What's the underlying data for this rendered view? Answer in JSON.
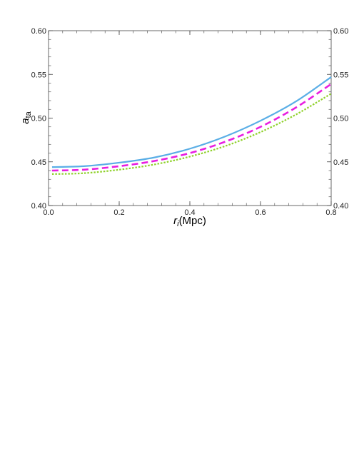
{
  "chart_data": {
    "type": "line",
    "xlabel_main": "r",
    "xlabel_sub": "i",
    "xlabel_rest": "(Mpc)",
    "ylabel_main": "a",
    "ylabel_sub": "ta",
    "xlim": [
      0,
      0.8
    ],
    "ylim": [
      0.4,
      0.6
    ],
    "x_ticks": [
      0.0,
      0.2,
      0.4,
      0.6,
      0.8
    ],
    "x_tick_labels": [
      "0.0",
      "0.2",
      "0.4",
      "0.6",
      "0.8"
    ],
    "y_ticks": [
      0.4,
      0.45,
      0.5,
      0.55,
      0.6
    ],
    "y_tick_labels": [
      "0.40",
      "0.45",
      "0.50",
      "0.55",
      "0.60"
    ],
    "grid": false,
    "x": [
      0.01,
      0.1,
      0.2,
      0.3,
      0.4,
      0.5,
      0.6,
      0.7,
      0.8
    ],
    "series": [
      {
        "values": [
          0.444,
          0.445,
          0.449,
          0.455,
          0.465,
          0.479,
          0.497,
          0.519,
          0.547
        ],
        "color": "#5aaee6",
        "style": "solid"
      },
      {
        "values": [
          0.44,
          0.441,
          0.445,
          0.451,
          0.46,
          0.473,
          0.49,
          0.512,
          0.539
        ],
        "color": "#e81ee0",
        "style": "dashed"
      },
      {
        "values": [
          0.436,
          0.437,
          0.441,
          0.447,
          0.456,
          0.468,
          0.484,
          0.504,
          0.528
        ],
        "color": "#8fd12a",
        "style": "dotted"
      }
    ]
  }
}
